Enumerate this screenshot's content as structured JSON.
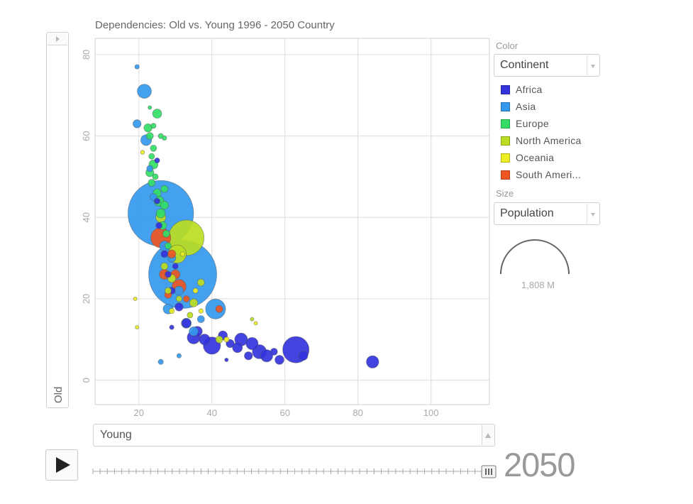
{
  "chart_data": {
    "type": "scatter",
    "title": "Dependencies: Old vs. Young 1996 - 2050 Country",
    "xlabel": "Young",
    "ylabel": "Old",
    "xlim": [
      8,
      116
    ],
    "ylim": [
      -6,
      84
    ],
    "xticks": [
      20,
      40,
      60,
      80,
      100
    ],
    "yticks": [
      0,
      20,
      40,
      60,
      80
    ],
    "grid": true,
    "legend": "right",
    "color_by": "Continent",
    "size_by": "Population",
    "size_reference_value": "1,808 M",
    "year": "2050",
    "series": [
      {
        "name": "Africa",
        "color": "#3333dd",
        "points": [
          {
            "x": 84,
            "y": 4.5,
            "s": 46
          },
          {
            "x": 63,
            "y": 7.5,
            "s": 210
          },
          {
            "x": 65,
            "y": 6,
            "s": 25
          },
          {
            "x": 58.5,
            "y": 5,
            "s": 25
          },
          {
            "x": 55,
            "y": 6,
            "s": 45
          },
          {
            "x": 53,
            "y": 7,
            "s": 60
          },
          {
            "x": 51,
            "y": 9,
            "s": 45
          },
          {
            "x": 50,
            "y": 6,
            "s": 20
          },
          {
            "x": 48,
            "y": 10,
            "s": 50
          },
          {
            "x": 47,
            "y": 8,
            "s": 30
          },
          {
            "x": 45,
            "y": 9,
            "s": 20
          },
          {
            "x": 43,
            "y": 11,
            "s": 25
          },
          {
            "x": 40,
            "y": 8.5,
            "s": 90
          },
          {
            "x": 38,
            "y": 10,
            "s": 35
          },
          {
            "x": 36,
            "y": 12,
            "s": 30
          },
          {
            "x": 35,
            "y": 10.5,
            "s": 50
          },
          {
            "x": 33,
            "y": 14,
            "s": 25
          },
          {
            "x": 31,
            "y": 18,
            "s": 20
          },
          {
            "x": 29,
            "y": 22,
            "s": 15
          },
          {
            "x": 28,
            "y": 26,
            "s": 12
          },
          {
            "x": 27,
            "y": 31,
            "s": 15
          },
          {
            "x": 25.5,
            "y": 38,
            "s": 12
          },
          {
            "x": 25,
            "y": 44,
            "s": 10
          },
          {
            "x": 25,
            "y": 54,
            "s": 8
          },
          {
            "x": 44,
            "y": 5,
            "s": 4
          },
          {
            "x": 29,
            "y": 13,
            "s": 6
          },
          {
            "x": 30,
            "y": 28,
            "s": 10
          },
          {
            "x": 57,
            "y": 7,
            "s": 15
          }
        ]
      },
      {
        "name": "Asia",
        "color": "#3399ee",
        "points": [
          {
            "x": 26,
            "y": 41,
            "s": 1300
          },
          {
            "x": 32,
            "y": 26,
            "s": 1400
          },
          {
            "x": 41,
            "y": 17.5,
            "s": 120
          },
          {
            "x": 21.5,
            "y": 71,
            "s": 60
          },
          {
            "x": 19.5,
            "y": 77,
            "s": 6
          },
          {
            "x": 19.5,
            "y": 63,
            "s": 20
          },
          {
            "x": 22,
            "y": 59,
            "s": 35
          },
          {
            "x": 28,
            "y": 17.5,
            "s": 30
          },
          {
            "x": 26,
            "y": 4.5,
            "s": 8
          },
          {
            "x": 31,
            "y": 6,
            "s": 6
          },
          {
            "x": 33,
            "y": 14,
            "s": 30
          },
          {
            "x": 35,
            "y": 12,
            "s": 25
          },
          {
            "x": 24,
            "y": 45,
            "s": 15
          },
          {
            "x": 27,
            "y": 33,
            "s": 30
          },
          {
            "x": 29,
            "y": 30,
            "s": 20
          },
          {
            "x": 31,
            "y": 22,
            "s": 25
          },
          {
            "x": 23,
            "y": 52,
            "s": 12
          },
          {
            "x": 37,
            "y": 15,
            "s": 15
          }
        ]
      },
      {
        "name": "Europe",
        "color": "#33dd66",
        "points": [
          {
            "x": 25,
            "y": 65.5,
            "s": 25
          },
          {
            "x": 22.5,
            "y": 62,
            "s": 20
          },
          {
            "x": 23,
            "y": 60,
            "s": 15
          },
          {
            "x": 24,
            "y": 57,
            "s": 12
          },
          {
            "x": 24,
            "y": 53,
            "s": 25
          },
          {
            "x": 23,
            "y": 51,
            "s": 20
          },
          {
            "x": 23.5,
            "y": 48.5,
            "s": 15
          },
          {
            "x": 25,
            "y": 46,
            "s": 20
          },
          {
            "x": 25.5,
            "y": 44,
            "s": 30
          },
          {
            "x": 27,
            "y": 43,
            "s": 20
          },
          {
            "x": 26,
            "y": 41,
            "s": 25
          },
          {
            "x": 26.5,
            "y": 38,
            "s": 20
          },
          {
            "x": 27.5,
            "y": 36,
            "s": 15
          },
          {
            "x": 28,
            "y": 33,
            "s": 12
          },
          {
            "x": 26,
            "y": 60,
            "s": 8
          },
          {
            "x": 27,
            "y": 59.5,
            "s": 6
          },
          {
            "x": 23,
            "y": 67,
            "s": 4
          },
          {
            "x": 23.5,
            "y": 55,
            "s": 10
          },
          {
            "x": 24.5,
            "y": 50,
            "s": 10
          },
          {
            "x": 27,
            "y": 47,
            "s": 15
          },
          {
            "x": 24,
            "y": 62.5,
            "s": 8
          }
        ]
      },
      {
        "name": "North America",
        "color": "#bbdd22",
        "points": [
          {
            "x": 33,
            "y": 35,
            "s": 380
          },
          {
            "x": 30.5,
            "y": 31,
            "s": 100
          },
          {
            "x": 29,
            "y": 25,
            "s": 20
          },
          {
            "x": 35,
            "y": 19,
            "s": 20
          },
          {
            "x": 37,
            "y": 24,
            "s": 15
          },
          {
            "x": 42,
            "y": 10,
            "s": 15
          },
          {
            "x": 51,
            "y": 15,
            "s": 4
          },
          {
            "x": 26,
            "y": 40,
            "s": 30
          },
          {
            "x": 27,
            "y": 28,
            "s": 15
          },
          {
            "x": 31,
            "y": 20,
            "s": 10
          },
          {
            "x": 28,
            "y": 22,
            "s": 12
          },
          {
            "x": 34,
            "y": 16,
            "s": 10
          }
        ]
      },
      {
        "name": "Oceania",
        "color": "#eeee22",
        "points": [
          {
            "x": 19.5,
            "y": 13,
            "s": 4
          },
          {
            "x": 19,
            "y": 20,
            "s": 4
          },
          {
            "x": 21,
            "y": 56,
            "s": 5
          },
          {
            "x": 29,
            "y": 17,
            "s": 8
          },
          {
            "x": 37,
            "y": 17,
            "s": 6
          },
          {
            "x": 44,
            "y": 10,
            "s": 8
          },
          {
            "x": 52,
            "y": 14,
            "s": 4
          },
          {
            "x": 35.5,
            "y": 22,
            "s": 8
          },
          {
            "x": 32,
            "y": 31,
            "s": 6
          }
        ]
      },
      {
        "name": "South Ameri...",
        "color": "#ee5522",
        "points": [
          {
            "x": 26,
            "y": 35,
            "s": 120
          },
          {
            "x": 30,
            "y": 26,
            "s": 25
          },
          {
            "x": 31,
            "y": 23,
            "s": 60
          },
          {
            "x": 27,
            "y": 26,
            "s": 30
          },
          {
            "x": 42,
            "y": 17.5,
            "s": 15
          },
          {
            "x": 29,
            "y": 31,
            "s": 20
          },
          {
            "x": 28,
            "y": 21,
            "s": 15
          },
          {
            "x": 33,
            "y": 20,
            "s": 12
          }
        ]
      }
    ]
  },
  "color_panel": {
    "caption": "Color",
    "selected": "Continent"
  },
  "size_panel": {
    "caption": "Size",
    "selected": "Population",
    "reference_value": "1,808 M"
  },
  "timeline": {
    "year": "2050"
  }
}
